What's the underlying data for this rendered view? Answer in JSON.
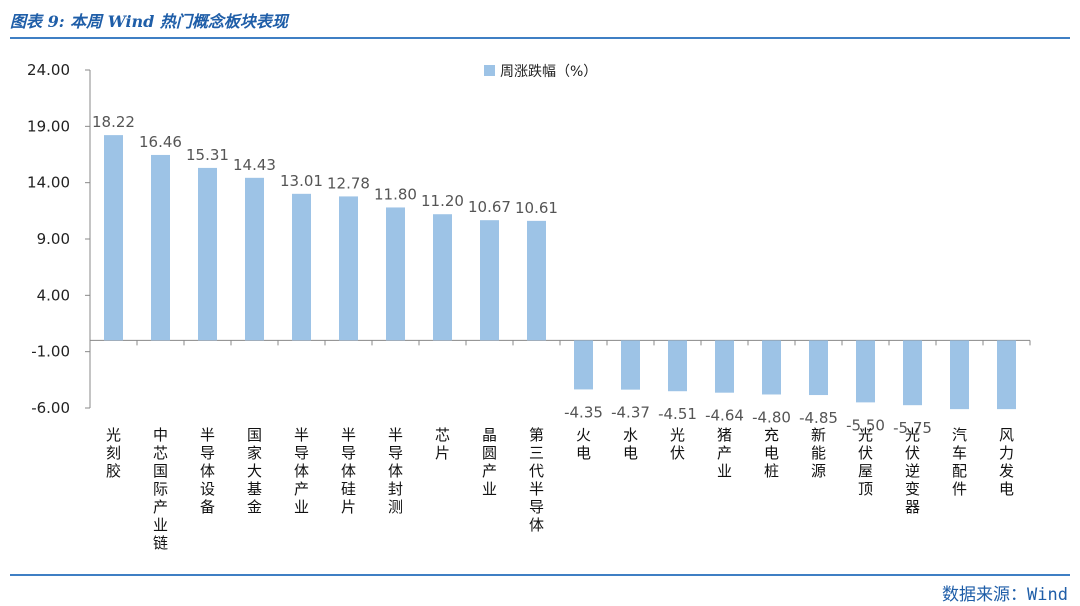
{
  "header": {
    "title": "图表 9: 本周 Wind 热门概念板块表现"
  },
  "footer": {
    "source": "数据来源：Wind"
  },
  "chart_data": {
    "type": "bar",
    "title": "",
    "xlabel": "",
    "ylabel": "",
    "legend": "top-center",
    "grid": false,
    "bar_color": "#9dc3e6",
    "ylim": [
      -6.0,
      24.0
    ],
    "yticks": [
      "24.00",
      "19.00",
      "14.00",
      "9.00",
      "4.00",
      "-1.00",
      "-6.00"
    ],
    "ytick_values": [
      24,
      19,
      14,
      9,
      4,
      -1,
      -6
    ],
    "categories": [
      "光刻胶",
      "中芯国际产业链",
      "半导体设备",
      "国家大基金",
      "半导体产业",
      "半导体硅片",
      "半导体封测",
      "芯片",
      "晶圆产业",
      "第三代半导体",
      "火电",
      "水电",
      "光伏",
      "猪产业",
      "充电桩",
      "新能源",
      "光伏屋顶",
      "光伏逆变器",
      "汽车配件",
      "风力发电"
    ],
    "series": [
      {
        "name": "周涨跌幅（%）",
        "values": [
          18.22,
          16.46,
          15.31,
          14.43,
          13.01,
          12.78,
          11.8,
          11.2,
          10.67,
          10.61,
          -4.35,
          -4.37,
          -4.51,
          -4.64,
          -4.8,
          -4.85,
          -5.5,
          -5.75,
          -6.1,
          -6.1
        ],
        "labels": [
          "18.22",
          "16.46",
          "15.31",
          "14.43",
          "13.01",
          "12.78",
          "11.80",
          "11.20",
          "10.67",
          "10.61",
          "-4.35",
          "-4.37",
          "-4.51",
          "-4.64",
          "-4.80",
          "-4.85",
          "-5.50",
          "-5.75",
          "",
          ""
        ]
      }
    ]
  }
}
